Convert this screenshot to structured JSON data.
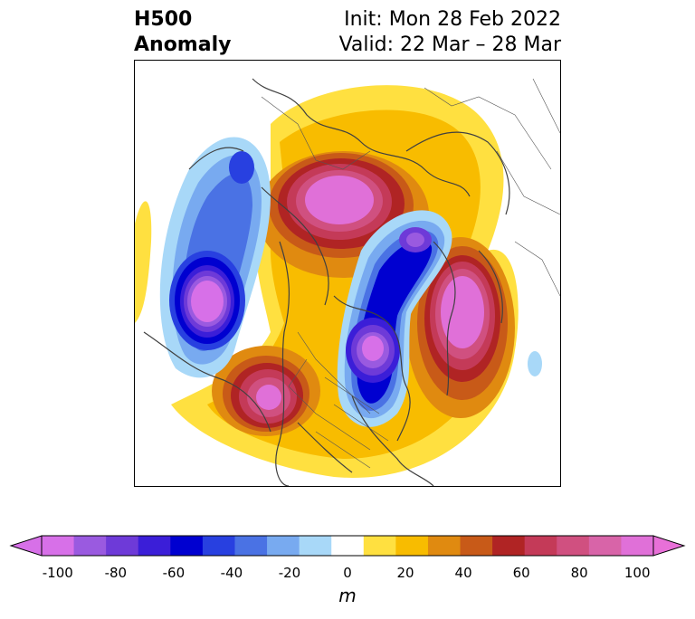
{
  "title": {
    "left_line1": "H500",
    "left_line2": "Anomaly",
    "right_line1": "Init: Mon 28 Feb 2022",
    "right_line2": "Valid: 22 Mar – 28 Mar"
  },
  "colorbar": {
    "unit": "m",
    "tick_labels": [
      "-100",
      "-80",
      "-60",
      "-40",
      "-20",
      "0",
      "20",
      "40",
      "60",
      "80",
      "100"
    ],
    "colors": [
      "#d770e8",
      "#9a5ae0",
      "#6e3ad8",
      "#3b1ed8",
      "#0000d0",
      "#2840e0",
      "#4a72e4",
      "#78aaf0",
      "#a8d8f8",
      "#ffffff",
      "#ffe040",
      "#f8bc00",
      "#e08a10",
      "#c85a18",
      "#b02424",
      "#c43a58",
      "#d05080",
      "#d864a8",
      "#e070d8"
    ],
    "left_extend_color": "#d770e8",
    "right_extend_color": "#e870d8"
  },
  "map": {
    "projection": "north-polar-stereographic",
    "features": [
      "coastlines",
      "country-borders",
      "state-borders"
    ]
  }
}
